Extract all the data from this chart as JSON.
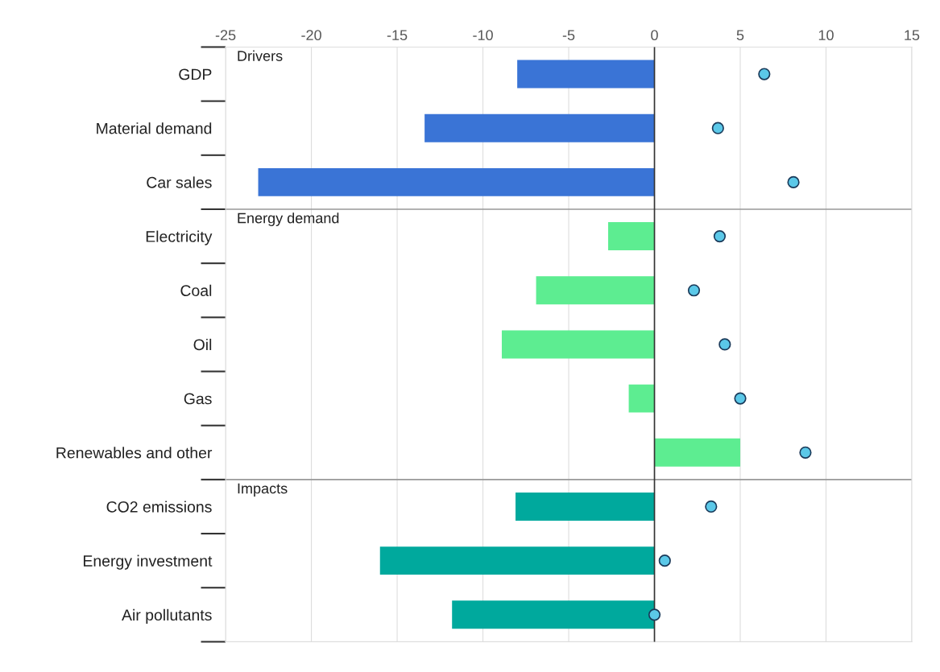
{
  "chart_data": {
    "type": "bar",
    "orientation": "horizontal",
    "categories": [
      "GDP",
      "Material demand",
      "Car sales",
      "Electricity",
      "Coal",
      "Oil",
      "Gas",
      "Renewables and other",
      "CO2 emissions",
      "Energy investment",
      "Air pollutants"
    ],
    "series": [
      {
        "colors": [
          "#3a74d6",
          "#3a74d6",
          "#3a74d6",
          "#5ded91",
          "#5ded91",
          "#5ded91",
          "#5ded91",
          "#5ded91",
          "#00a99d",
          "#00a99d",
          "#00a99d"
        ],
        "values": [
          -8.0,
          -13.4,
          -23.1,
          -2.7,
          -6.9,
          -8.9,
          -1.5,
          5.0,
          -8.1,
          -16.0,
          -11.8
        ]
      },
      {
        "type": "scatter",
        "color": "#5bc8e8",
        "values": [
          6.4,
          3.7,
          8.1,
          3.8,
          2.3,
          4.1,
          5.0,
          8.8,
          3.3,
          0.6,
          0.0
        ]
      }
    ],
    "xlim": [
      -25,
      15
    ],
    "xticks": [
      -25,
      -20,
      -15,
      -10,
      -5,
      0,
      5,
      10,
      15
    ],
    "grid": "x",
    "marker": "circle",
    "annotations": [
      "Drivers",
      "Energy demand",
      "Impacts"
    ]
  }
}
